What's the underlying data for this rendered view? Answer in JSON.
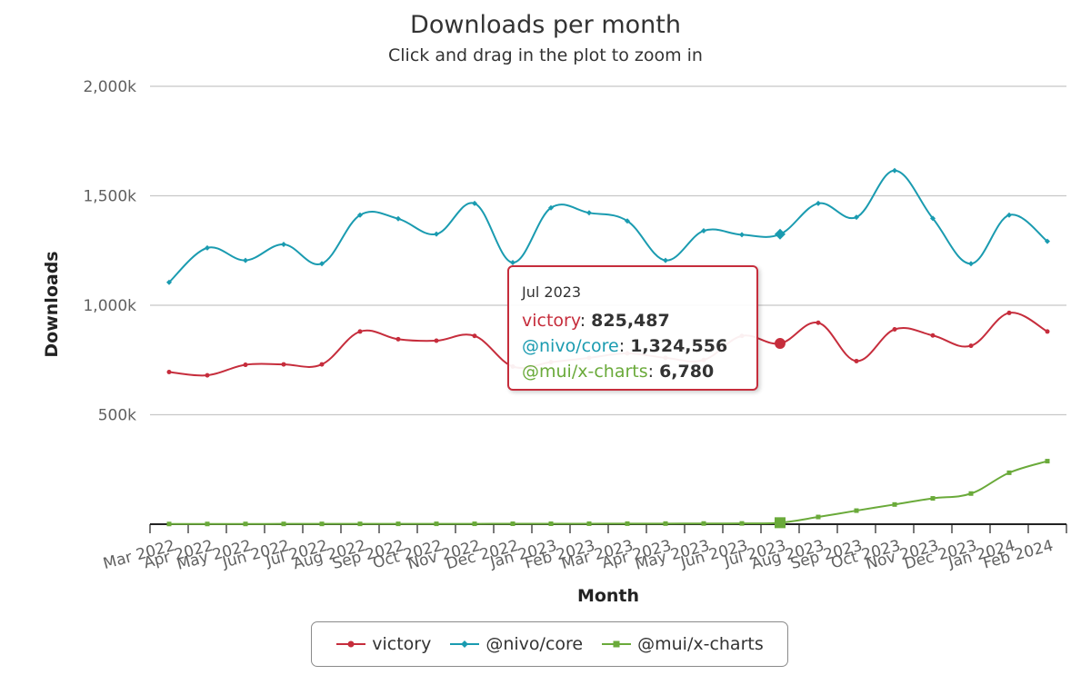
{
  "chart_data": {
    "type": "line",
    "title": "Downloads per month",
    "subtitle": "Click and drag in the plot to zoom in",
    "xlabel": "Month",
    "ylabel": "Downloads",
    "ylim": [
      0,
      2000000
    ],
    "y_ticks": [
      {
        "value": 500000,
        "label": "500k"
      },
      {
        "value": 1000000,
        "label": "1,000k"
      },
      {
        "value": 1500000,
        "label": "1,500k"
      },
      {
        "value": 2000000,
        "label": "2,000k"
      }
    ],
    "grid": true,
    "legend_position": "bottom",
    "categories": [
      "Mar 2022",
      "Apr 2022",
      "May 2022",
      "Jun 2022",
      "Jul 2022",
      "Aug 2022",
      "Sep 2022",
      "Oct 2022",
      "Nov 2022",
      "Dec 2022",
      "Jan 2023",
      "Feb 2023",
      "Mar 2023",
      "Apr 2023",
      "May 2023",
      "Jun 2023",
      "Jul 2023",
      "Aug 2023",
      "Sep 2023",
      "Oct 2023",
      "Nov 2023",
      "Dec 2023",
      "Jan 2024",
      "Feb 2024"
    ],
    "series": [
      {
        "name": "victory",
        "color": "#c62d3c",
        "marker": "circle",
        "values": [
          695000,
          680000,
          728000,
          730000,
          730000,
          880000,
          845000,
          838000,
          860000,
          720000,
          740000,
          760000,
          780000,
          760000,
          750000,
          860000,
          825487,
          920000,
          745000,
          890000,
          862000,
          815000,
          965000,
          880000
        ]
      },
      {
        "name": "@nivo/core",
        "color": "#1a9bb0",
        "marker": "diamond",
        "values": [
          1105000,
          1262000,
          1205000,
          1278000,
          1190000,
          1412000,
          1395000,
          1325000,
          1465000,
          1195000,
          1445000,
          1422000,
          1385000,
          1205000,
          1340000,
          1322000,
          1324556,
          1465000,
          1402000,
          1615000,
          1397000,
          1190000,
          1412000,
          1292000
        ]
      },
      {
        "name": "@mui/x-charts",
        "color": "#6aaa3a",
        "marker": "square",
        "values": [
          1000,
          1100,
          1200,
          1300,
          1400,
          1500,
          1600,
          1700,
          1800,
          2000,
          2100,
          2300,
          2500,
          2800,
          3200,
          3600,
          6780,
          33000,
          62000,
          90000,
          118000,
          140000,
          235000,
          288000
        ]
      }
    ]
  },
  "tooltip": {
    "header": "Jul 2023",
    "rows": [
      {
        "name": "victory",
        "value": "825,487"
      },
      {
        "name": "@nivo/core",
        "value": "1,324,556"
      },
      {
        "name": "@mui/x-charts",
        "value": "6,780"
      }
    ]
  },
  "legend": {
    "items": [
      {
        "label": "victory"
      },
      {
        "label": "@nivo/core"
      },
      {
        "label": "@mui/x-charts"
      }
    ]
  }
}
